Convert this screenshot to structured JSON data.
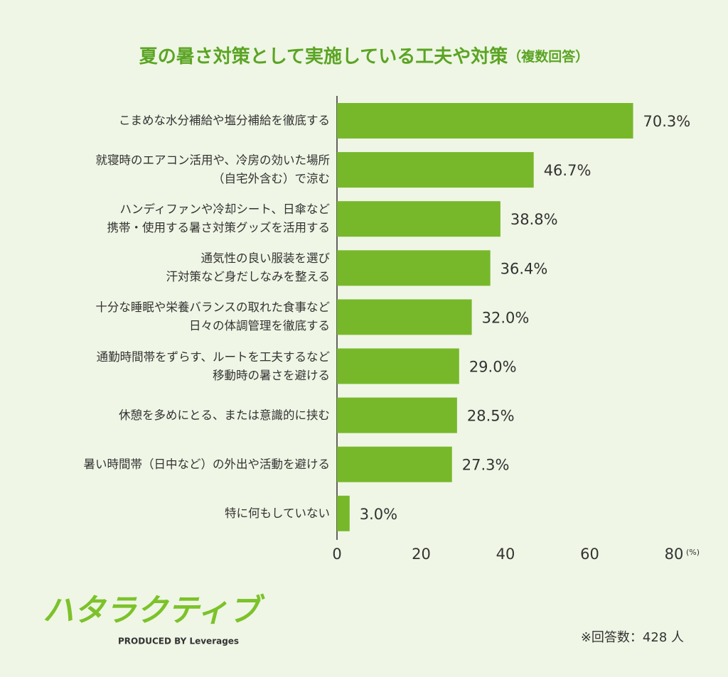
{
  "chart_data": {
    "type": "bar",
    "orientation": "horizontal",
    "title": "夏の暑さ対策として実施している工夫や対策",
    "subtitle": "（複数回答）",
    "categories": [
      "こまめな水分補給や塩分補給を徹底する",
      "就寝時のエアコン活用や、冷房の効いた場所\n（自宅外含む）で涼む",
      "ハンディファンや冷却シート、日傘など\n携帯・使用する暑さ対策グッズを活用する",
      "通気性の良い服装を選び\n汗対策など身だしなみを整える",
      "十分な睡眠や栄養バランスの取れた食事など\n日々の体調管理を徹底する",
      "通勤時間帯をずらす、ルートを工夫するなど\n移動時の暑さを避ける",
      "休憩を多めにとる、または意識的に挟む",
      "暑い時間帯（日中など）の外出や活動を避ける",
      "特に何もしていない"
    ],
    "values": [
      70.3,
      46.7,
      38.8,
      36.4,
      32.0,
      29.0,
      28.5,
      27.3,
      3.0
    ],
    "value_labels": [
      "70.3%",
      "46.7%",
      "38.8%",
      "36.4%",
      "32.0%",
      "29.0%",
      "28.5%",
      "27.3%",
      "3.0%"
    ],
    "color": "#77b82b",
    "xlim": [
      0,
      80
    ],
    "xticks": [
      0,
      20,
      40,
      60,
      80
    ],
    "x_unit": "(%)",
    "note": "※回答数：428 人",
    "logo": "ハタラクティブ",
    "logo_sub": "PRODUCED BY Leverages"
  }
}
